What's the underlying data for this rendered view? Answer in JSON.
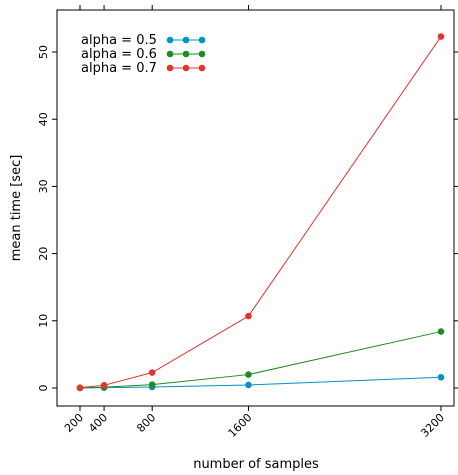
{
  "chart_data": {
    "type": "line",
    "xlabel": "number of samples",
    "ylabel": "mean time [sec]",
    "x": [
      200,
      400,
      800,
      1600,
      3200
    ],
    "xlim": [
      0,
      3400
    ],
    "ylim": [
      -2.5,
      55.5
    ],
    "yticks": [
      0,
      10,
      20,
      30,
      40,
      50
    ],
    "xticks": [
      200,
      400,
      800,
      1600,
      3200
    ],
    "series": [
      {
        "name": "alpha = 0.5",
        "color": "#0093c8",
        "values": [
          0.0,
          0.05,
          0.15,
          0.45,
          1.6
        ]
      },
      {
        "name": "alpha = 0.6",
        "color": "#1f8c1f",
        "values": [
          0.02,
          0.12,
          0.5,
          2.0,
          8.4
        ]
      },
      {
        "name": "alpha = 0.7",
        "color": "#e3342f",
        "values": [
          0.05,
          0.4,
          2.3,
          10.7,
          52.3
        ]
      }
    ],
    "legend_position": "top-left",
    "grid": false
  }
}
